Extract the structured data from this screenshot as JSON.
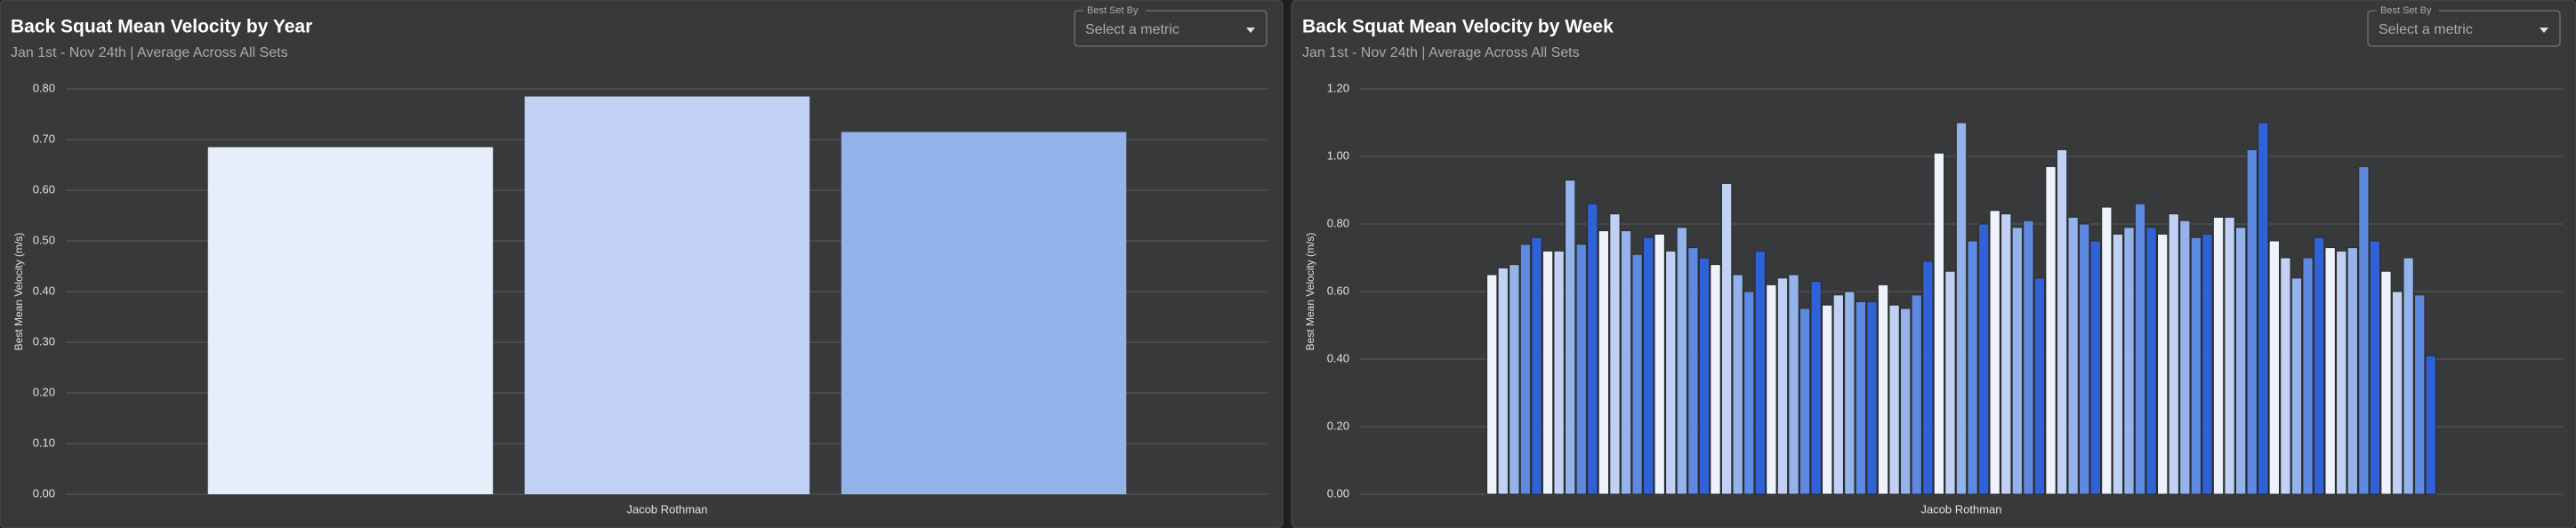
{
  "chart_data": [
    {
      "type": "bar",
      "title": "Back Squat Mean Velocity by Year",
      "subtitle": "Jan 1st - Nov 24th | Average Across All Sets",
      "dropdown_label": "Best Set By",
      "dropdown_placeholder": "Select a metric",
      "ylabel": "Best Mean Velocity (m/s)",
      "group_label": "Jacob Rothman",
      "values": [
        0.685,
        0.785,
        0.715
      ],
      "colors": [
        "#e6edfb",
        "#c0d1f4",
        "#93b3ea"
      ],
      "ylim": [
        0,
        0.8
      ],
      "yticks": [
        {
          "value": 0,
          "label": "0.00"
        },
        {
          "value": 0.1,
          "label": "0.10"
        },
        {
          "value": 0.2,
          "label": "0.20"
        },
        {
          "value": 0.3,
          "label": "0.30"
        },
        {
          "value": 0.4,
          "label": "0.40"
        },
        {
          "value": 0.5,
          "label": "0.50"
        },
        {
          "value": 0.6,
          "label": "0.60"
        },
        {
          "value": 0.7,
          "label": "0.70"
        },
        {
          "value": 0.8,
          "label": "0.80"
        }
      ],
      "grid": true
    },
    {
      "type": "bar",
      "title": "Back Squat Mean Velocity by Week",
      "subtitle": "Jan 1st - Nov 24th | Average Across All Sets",
      "dropdown_label": "Best Set By",
      "dropdown_placeholder": "Select a metric",
      "ylabel": "Best Mean Velocity (m/s)",
      "group_label": "Jacob Rothman",
      "values": [
        0.65,
        0.67,
        0.68,
        0.74,
        0.76,
        0.72,
        0.72,
        0.93,
        0.74,
        0.86,
        0.78,
        0.83,
        0.78,
        0.71,
        0.76,
        0.77,
        0.72,
        0.79,
        0.73,
        0.7,
        0.68,
        0.92,
        0.65,
        0.6,
        0.72,
        0.62,
        0.64,
        0.65,
        0.55,
        0.63,
        0.56,
        0.59,
        0.6,
        0.57,
        0.57,
        0.62,
        0.56,
        0.55,
        0.59,
        0.69,
        1.01,
        0.66,
        1.1,
        0.75,
        0.8,
        0.84,
        0.83,
        0.79,
        0.81,
        0.64,
        0.97,
        1.02,
        0.82,
        0.8,
        0.75,
        0.85,
        0.77,
        0.79,
        0.86,
        0.79,
        0.77,
        0.83,
        0.81,
        0.76,
        0.77,
        0.82,
        0.82,
        0.79,
        1.02,
        1.1,
        0.75,
        0.7,
        0.64,
        0.7,
        0.76,
        0.73,
        0.72,
        0.73,
        0.97,
        0.75,
        0.66,
        0.6,
        0.7,
        0.59,
        0.41
      ],
      "colors": [
        "#eef2fc",
        "#c0d1f4",
        "#93b3ea",
        "#5d8ae0",
        "#2f62d6"
      ],
      "ylim": [
        0,
        1.2
      ],
      "yticks": [
        {
          "value": 0,
          "label": "0.00"
        },
        {
          "value": 0.2,
          "label": "0.20"
        },
        {
          "value": 0.4,
          "label": "0.40"
        },
        {
          "value": 0.6,
          "label": "0.60"
        },
        {
          "value": 0.8,
          "label": "0.80"
        },
        {
          "value": 1.0,
          "label": "1.00"
        },
        {
          "value": 1.2,
          "label": "1.20"
        }
      ],
      "grid": true
    }
  ]
}
